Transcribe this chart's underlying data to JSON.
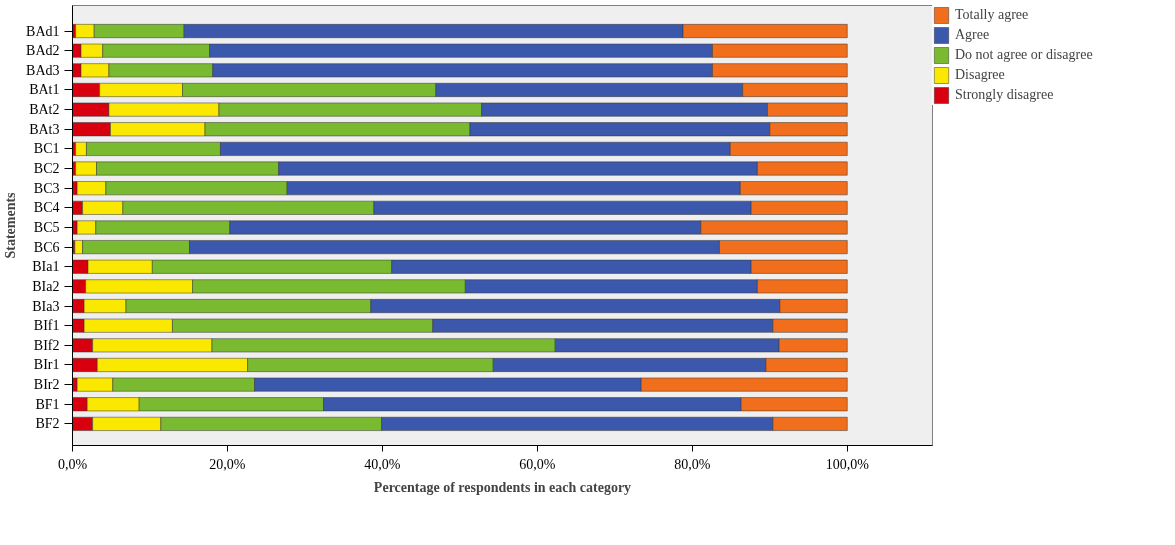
{
  "chart_data": {
    "type": "bar",
    "orientation": "horizontal",
    "stacked": true,
    "xlabel": "Percentage of respondents in each category",
    "ylabel": "Statements",
    "categories": [
      "BAd1",
      "BAd2",
      "BAd3",
      "BAt1",
      "BAt2",
      "BAt3",
      "BC1",
      "BC2",
      "BC3",
      "BC4",
      "BC5",
      "BC6",
      "BIa1",
      "BIa2",
      "BIa3",
      "BIf1",
      "BIf2",
      "BIr1",
      "BIr2",
      "BF1",
      "BF2"
    ],
    "series": [
      {
        "name": "Strongly disagree",
        "color": "#d8000f",
        "values": [
          0.4,
          1.1,
          1.1,
          3.5,
          4.7,
          4.9,
          0.4,
          0.4,
          0.6,
          1.3,
          0.6,
          0.3,
          2.0,
          1.7,
          1.5,
          1.5,
          2.6,
          3.2,
          0.6,
          1.9,
          2.6
        ]
      },
      {
        "name": "Disagree",
        "color": "#fbe800",
        "values": [
          2.4,
          2.8,
          3.6,
          10.7,
          14.2,
          12.2,
          1.4,
          2.7,
          3.7,
          5.2,
          2.4,
          1.0,
          8.3,
          13.8,
          5.4,
          11.4,
          15.4,
          19.4,
          4.6,
          6.7,
          8.8
        ]
      },
      {
        "name": "Do not agree or disagree",
        "color": "#7aba30",
        "values": [
          11.6,
          13.8,
          13.4,
          32.7,
          33.9,
          34.2,
          17.3,
          23.5,
          23.4,
          32.4,
          17.3,
          13.8,
          30.9,
          35.2,
          31.6,
          33.6,
          44.3,
          31.7,
          18.3,
          23.8,
          28.5
        ]
      },
      {
        "name": "Agree",
        "color": "#3c58ac",
        "values": [
          64.4,
          64.9,
          64.5,
          39.6,
          36.9,
          38.7,
          65.8,
          61.8,
          58.5,
          48.7,
          60.8,
          68.4,
          46.4,
          37.7,
          52.8,
          43.9,
          28.9,
          35.2,
          49.9,
          53.9,
          50.5
        ]
      },
      {
        "name": "Totally agree",
        "color": "#f06e1c",
        "values": [
          21.2,
          17.4,
          17.4,
          13.5,
          10.3,
          10.0,
          15.1,
          11.6,
          13.8,
          12.4,
          18.9,
          16.5,
          12.4,
          11.6,
          8.7,
          9.6,
          8.8,
          10.5,
          26.6,
          13.7,
          9.6
        ]
      }
    ],
    "xlim": [
      0,
      111
    ],
    "xticks": [
      {
        "value": 0,
        "label": "0,0%"
      },
      {
        "value": 20,
        "label": "20,0%"
      },
      {
        "value": 40,
        "label": "40,0%"
      },
      {
        "value": 60,
        "label": "60,0%"
      },
      {
        "value": 80,
        "label": "80,0%"
      },
      {
        "value": 100,
        "label": "100,0%"
      }
    ],
    "legend": "right"
  }
}
